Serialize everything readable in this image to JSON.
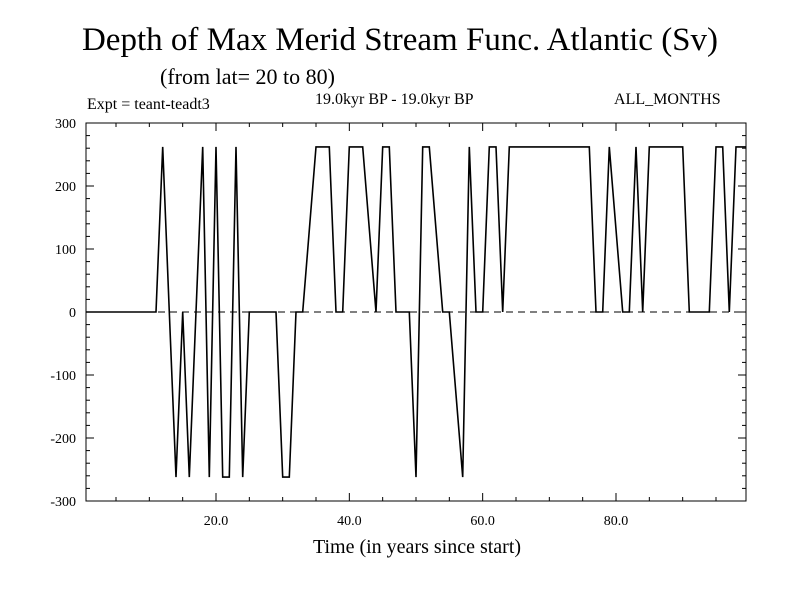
{
  "chart_data": {
    "type": "line",
    "title": "Depth of Max Merid Stream Func. Atlantic (Sv)",
    "subtitle": "(from lat= 20 to 80)",
    "header_left": "Expt = teant-teadt3",
    "header_center": "19.0kyr BP - 19.0kyr BP",
    "header_right": "ALL_MONTHS",
    "xlabel": "Time (in years since start)",
    "ylabel": "",
    "xlim": [
      0.5,
      99.5
    ],
    "ylim": [
      -300,
      300
    ],
    "x_ticks": [
      20,
      40,
      60,
      80
    ],
    "x_tick_labels": [
      "20.0",
      "40.0",
      "60.0",
      "80.0"
    ],
    "y_ticks": [
      300,
      200,
      100,
      0,
      -100,
      -200,
      -300
    ],
    "y_tick_labels": [
      "300",
      "200",
      "100",
      "0",
      "-100",
      "-200",
      "-300"
    ],
    "zero_line": "dashed",
    "grid": false,
    "series": [
      {
        "x": [
          0.5,
          11.0,
          12.0,
          13.0,
          14.0,
          15.0,
          16.0,
          17.0,
          18.0,
          19.0,
          20.0,
          21.0,
          22.0,
          23.0,
          24.0,
          25.0,
          29.0,
          30.0,
          31.0,
          32.0,
          33.0,
          35.0,
          36.0,
          37.0,
          38.0,
          39.0,
          40.0,
          41.0,
          42.0,
          44.0,
          45.0,
          46.0,
          47.0,
          48.0,
          49.0,
          50.0,
          51.0,
          52.0,
          54.0,
          55.0,
          57.0,
          58.0,
          59.0,
          60.0,
          61.0,
          62.0,
          63.0,
          64.0,
          65.0,
          66.0,
          76.0,
          77.0,
          78.0,
          79.0,
          81.0,
          82.0,
          83.0,
          84.0,
          85.0,
          86.0,
          90.0,
          91.0,
          94.0,
          95.0,
          96.0,
          97.0,
          98.0,
          99.5
        ],
        "y": [
          0,
          0,
          262,
          0,
          -262,
          0,
          -262,
          0,
          262,
          -262,
          262,
          -262,
          -262,
          262,
          -262,
          0,
          0,
          -262,
          -262,
          0,
          0,
          262,
          262,
          262,
          0,
          0,
          262,
          262,
          262,
          0,
          262,
          262,
          0,
          0,
          0,
          -262,
          262,
          262,
          0,
          0,
          -262,
          262,
          0,
          0,
          262,
          262,
          0,
          262,
          262,
          262,
          262,
          0,
          0,
          262,
          0,
          0,
          262,
          0,
          262,
          262,
          262,
          0,
          0,
          262,
          262,
          0,
          262,
          262
        ]
      }
    ]
  }
}
